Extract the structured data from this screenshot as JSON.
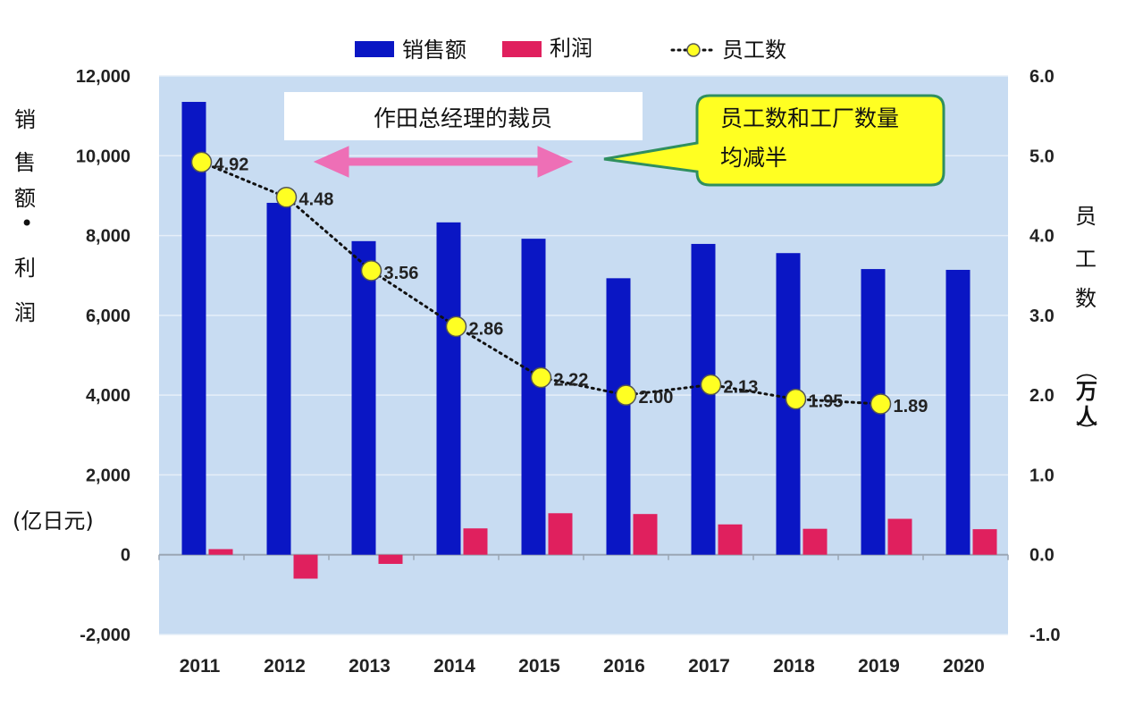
{
  "chart_data": {
    "type": "bar",
    "categories": [
      "2011",
      "2012",
      "2013",
      "2014",
      "2015",
      "2016",
      "2017",
      "2018",
      "2019",
      "2020"
    ],
    "series": [
      {
        "name": "销售额",
        "axis": "left",
        "kind": "bar",
        "color": "#0a16c4",
        "values": [
          11350,
          8820,
          7860,
          8330,
          7920,
          6930,
          7790,
          7560,
          7160,
          7140
        ]
      },
      {
        "name": "利润",
        "axis": "left",
        "kind": "bar",
        "color": "#e0205e",
        "values": [
          140,
          -600,
          -230,
          660,
          1040,
          1020,
          760,
          650,
          900,
          640
        ]
      },
      {
        "name": "员工数",
        "axis": "right",
        "kind": "line",
        "color": "#ffff22",
        "values": [
          4.92,
          4.48,
          3.56,
          2.86,
          2.22,
          2.0,
          2.13,
          1.95,
          1.89,
          null
        ],
        "labels": [
          "4.92",
          "4.48",
          "3.56",
          "2.86",
          "2.22",
          "2.00",
          "2.13",
          "1.95",
          "1.89",
          ""
        ]
      }
    ],
    "y_left": {
      "label_chars": [
        "销",
        "售",
        "额",
        "•",
        "利",
        "润"
      ],
      "unit": "(亿日元)",
      "ticks": [
        "-2,000",
        "0",
        "2,000",
        "4,000",
        "6,000",
        "8,000",
        "10,000",
        "12,000"
      ],
      "ylim": [
        -2000,
        12000
      ]
    },
    "y_right": {
      "label_chars": [
        "员",
        "工",
        "数"
      ],
      "unit_chars": [
        "（",
        "万",
        "人",
        "）"
      ],
      "ticks": [
        "-1.0",
        "0.0",
        "1.0",
        "2.0",
        "3.0",
        "4.0",
        "5.0",
        "6.0"
      ],
      "ylim": [
        -1.0,
        6.0
      ]
    },
    "legend": {
      "position": "top",
      "items": [
        "销售额",
        "利润",
        "员工数"
      ]
    },
    "annotations": {
      "box_text": "作田总经理的裁员",
      "callout_lines": [
        "员工数和工厂数量",
        "均减半"
      ]
    },
    "grid": true,
    "plot_background": "#c8dcf2"
  }
}
